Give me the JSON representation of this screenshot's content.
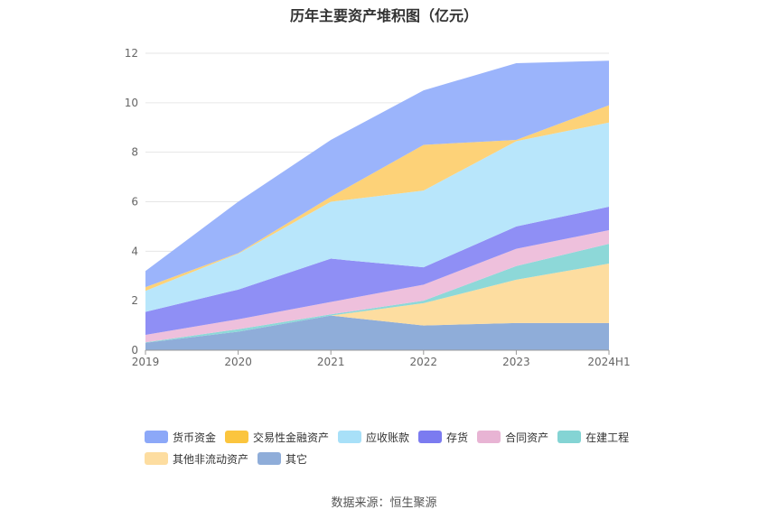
{
  "chart_data": {
    "type": "area",
    "stacked": true,
    "title": "历年主要资产堆积图（亿元）",
    "categories": [
      "2019",
      "2020",
      "2021",
      "2022",
      "2023",
      "2024H1"
    ],
    "ylim": [
      0,
      12
    ],
    "yticks": [
      "0",
      "2",
      "4",
      "6",
      "8",
      "10",
      "12"
    ],
    "grid": true,
    "legend_position": "bottom",
    "series": [
      {
        "name": "其它",
        "color": "#8fadd9",
        "values": [
          0.3,
          0.75,
          1.4,
          1.0,
          1.1,
          1.1
        ]
      },
      {
        "name": "其他非流动资产",
        "color": "#fddda0",
        "values": [
          0.0,
          0.0,
          0.0,
          0.9,
          1.75,
          2.4
        ]
      },
      {
        "name": "在建工程",
        "color": "#8dd8d8",
        "values": [
          0.02,
          0.1,
          0.05,
          0.1,
          0.55,
          0.8
        ]
      },
      {
        "name": "合同资产",
        "color": "#eec0dc",
        "values": [
          0.3,
          0.4,
          0.5,
          0.65,
          0.7,
          0.55
        ]
      },
      {
        "name": "存货",
        "color": "#8f8ff5",
        "values": [
          0.93,
          1.2,
          1.75,
          0.7,
          0.9,
          0.95
        ]
      },
      {
        "name": "应收账款",
        "color": "#b8e6fb",
        "values": [
          0.85,
          1.45,
          2.3,
          3.1,
          3.45,
          3.4
        ]
      },
      {
        "name": "交易性金融资产",
        "color": "#fdd278",
        "values": [
          0.15,
          0.02,
          0.2,
          1.85,
          0.05,
          0.7
        ]
      },
      {
        "name": "货币资金",
        "color": "#9bb4fb",
        "values": [
          0.65,
          2.08,
          2.3,
          2.2,
          3.1,
          1.8
        ]
      }
    ],
    "legend_order": [
      "货币资金",
      "交易性金融资产",
      "应收账款",
      "存货",
      "合同资产",
      "在建工程",
      "其他非流动资产",
      "其它"
    ],
    "legend_colors": [
      "#8ca8f8",
      "#fbc53e",
      "#a8e0f8",
      "#7b7bf0",
      "#e8b4d4",
      "#84d4d4",
      "#fddda0",
      "#8fadd9"
    ]
  },
  "source": "数据来源：恒生聚源"
}
